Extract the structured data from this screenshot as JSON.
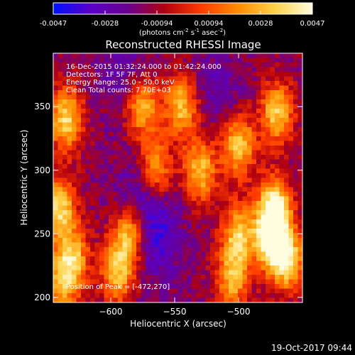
{
  "colorbar": {
    "ticks": [
      "-0.0047",
      "-0.0028",
      "-0.00094",
      "0.00094",
      "0.0028",
      "0.0047"
    ],
    "units_prefix": "(photons cm",
    "units_exp1": "-2",
    "units_mid": " s",
    "units_exp2": "-1",
    "units_mid2": " asec",
    "units_exp3": "-2",
    "units_suffix": ")",
    "colors": [
      "#0010ff",
      "#5a00c8",
      "#6a0090",
      "#b00010",
      "#ff3c00",
      "#ff8c00",
      "#ffd24a",
      "#fffde0"
    ]
  },
  "chart_data": {
    "type": "heatmap",
    "title": "Reconstructed RHESSI Image",
    "xlabel": "Heliocentric X (arcsec)",
    "ylabel": "Heliocentric Y (arcsec)",
    "xlim": [
      -645,
      -450
    ],
    "ylim": [
      196,
      392
    ],
    "xticks": [
      -600,
      -550,
      -500
    ],
    "yticks": [
      200,
      250,
      300,
      350
    ],
    "xtick_labels": [
      "−600",
      "−550",
      "−500"
    ],
    "ytick_labels": [
      "200",
      "250",
      "300",
      "350"
    ],
    "zlim": [
      -0.0047,
      0.0047
    ],
    "info_lines": [
      "16-Dec-2015 01:32:24.000 to 01:42:24.000",
      "Detectors: 1F 5F 7F, Att 0",
      "Energy Range: 25.0 - 50.0 keV",
      "Clean     Total counts: 7.70E+03"
    ],
    "peak_label": "Position of Peak = [-472,270]",
    "peak_position": [
      -472,
      270
    ],
    "sources": [
      {
        "x": -472,
        "y": 270,
        "level": 1.0
      },
      {
        "x": -475,
        "y": 245,
        "level": 0.95
      },
      {
        "x": -470,
        "y": 345,
        "level": 0.8
      },
      {
        "x": -462,
        "y": 230,
        "level": 0.9
      },
      {
        "x": -500,
        "y": 320,
        "level": 0.8
      },
      {
        "x": -500,
        "y": 250,
        "level": 0.75
      },
      {
        "x": -505,
        "y": 215,
        "level": 0.7
      },
      {
        "x": -530,
        "y": 300,
        "level": 0.75
      },
      {
        "x": -545,
        "y": 350,
        "level": 0.75
      },
      {
        "x": -565,
        "y": 300,
        "level": 0.7
      },
      {
        "x": -585,
        "y": 250,
        "level": 0.8
      },
      {
        "x": -595,
        "y": 220,
        "level": 0.75
      },
      {
        "x": -575,
        "y": 350,
        "level": 0.7
      },
      {
        "x": -635,
        "y": 340,
        "level": 0.85
      },
      {
        "x": -640,
        "y": 270,
        "level": 0.85
      },
      {
        "x": -630,
        "y": 230,
        "level": 0.75
      },
      {
        "x": -640,
        "y": 210,
        "level": 0.6
      }
    ],
    "troughs": [
      {
        "x": -575,
        "y": 280,
        "level": 1.0
      },
      {
        "x": -565,
        "y": 245,
        "level": 1.0
      },
      {
        "x": -590,
        "y": 380,
        "level": 0.7
      },
      {
        "x": -515,
        "y": 365,
        "level": 0.6
      }
    ]
  },
  "footer": {
    "timestamp": "19-Oct-2017 09:44"
  }
}
